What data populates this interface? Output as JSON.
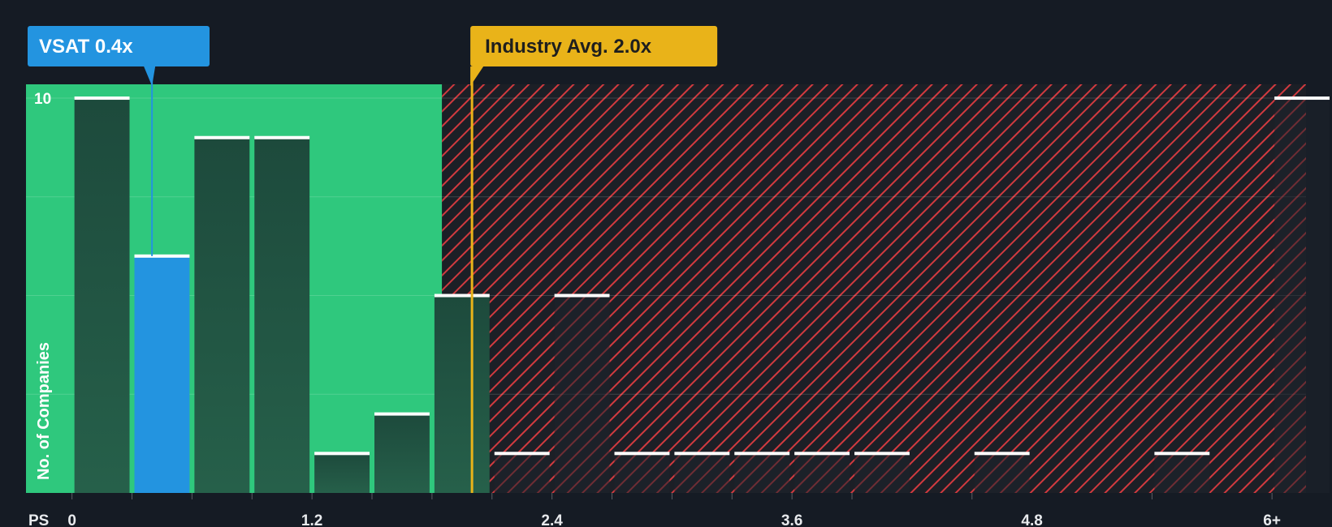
{
  "chart_data": {
    "type": "bar",
    "title": "",
    "xlabel": "PS",
    "ylabel": "No. of Companies",
    "bin_width": 0.3,
    "xlim": [
      -0.23,
      6.17
    ],
    "ylim": [
      0,
      10.35
    ],
    "x_ticks": [
      {
        "value": 0,
        "label": "0"
      },
      {
        "value": 1.2,
        "label": "1.2"
      },
      {
        "value": 2.4,
        "label": "2.4"
      },
      {
        "value": 3.6,
        "label": "3.6"
      },
      {
        "value": 4.8,
        "label": "4.8"
      },
      {
        "value": 6.0,
        "label": "6+"
      }
    ],
    "y_ticks": [
      {
        "value": 10,
        "label": "10"
      }
    ],
    "gridlines_y": [
      2.5,
      5,
      7.5,
      10
    ],
    "bins": [
      {
        "x": 0.0,
        "count": 10
      },
      {
        "x": 0.3,
        "count": 6
      },
      {
        "x": 0.6,
        "count": 9
      },
      {
        "x": 0.9,
        "count": 9
      },
      {
        "x": 1.2,
        "count": 1
      },
      {
        "x": 1.5,
        "count": 2
      },
      {
        "x": 1.8,
        "count": 5
      },
      {
        "x": 2.1,
        "count": 1
      },
      {
        "x": 2.4,
        "count": 5
      },
      {
        "x": 2.7,
        "count": 1
      },
      {
        "x": 3.0,
        "count": 1
      },
      {
        "x": 3.3,
        "count": 1
      },
      {
        "x": 3.6,
        "count": 1
      },
      {
        "x": 3.9,
        "count": 1
      },
      {
        "x": 4.5,
        "count": 1
      },
      {
        "x": 5.4,
        "count": 1
      },
      {
        "x": 6.0,
        "count": 10
      }
    ],
    "company": {
      "label": "VSAT 0.4x",
      "value": 0.4,
      "highlight_bin": 0.3,
      "color": "#2394e0"
    },
    "industry": {
      "label": "Industry Avg. 2.0x",
      "value": 2.0,
      "color": "#e9b319"
    },
    "zones": {
      "fair_color": "#2fc87d",
      "over_color": "#d13a3f",
      "bar_color": "#1d4a3c",
      "bar_cap_color": "#ffffff"
    }
  }
}
